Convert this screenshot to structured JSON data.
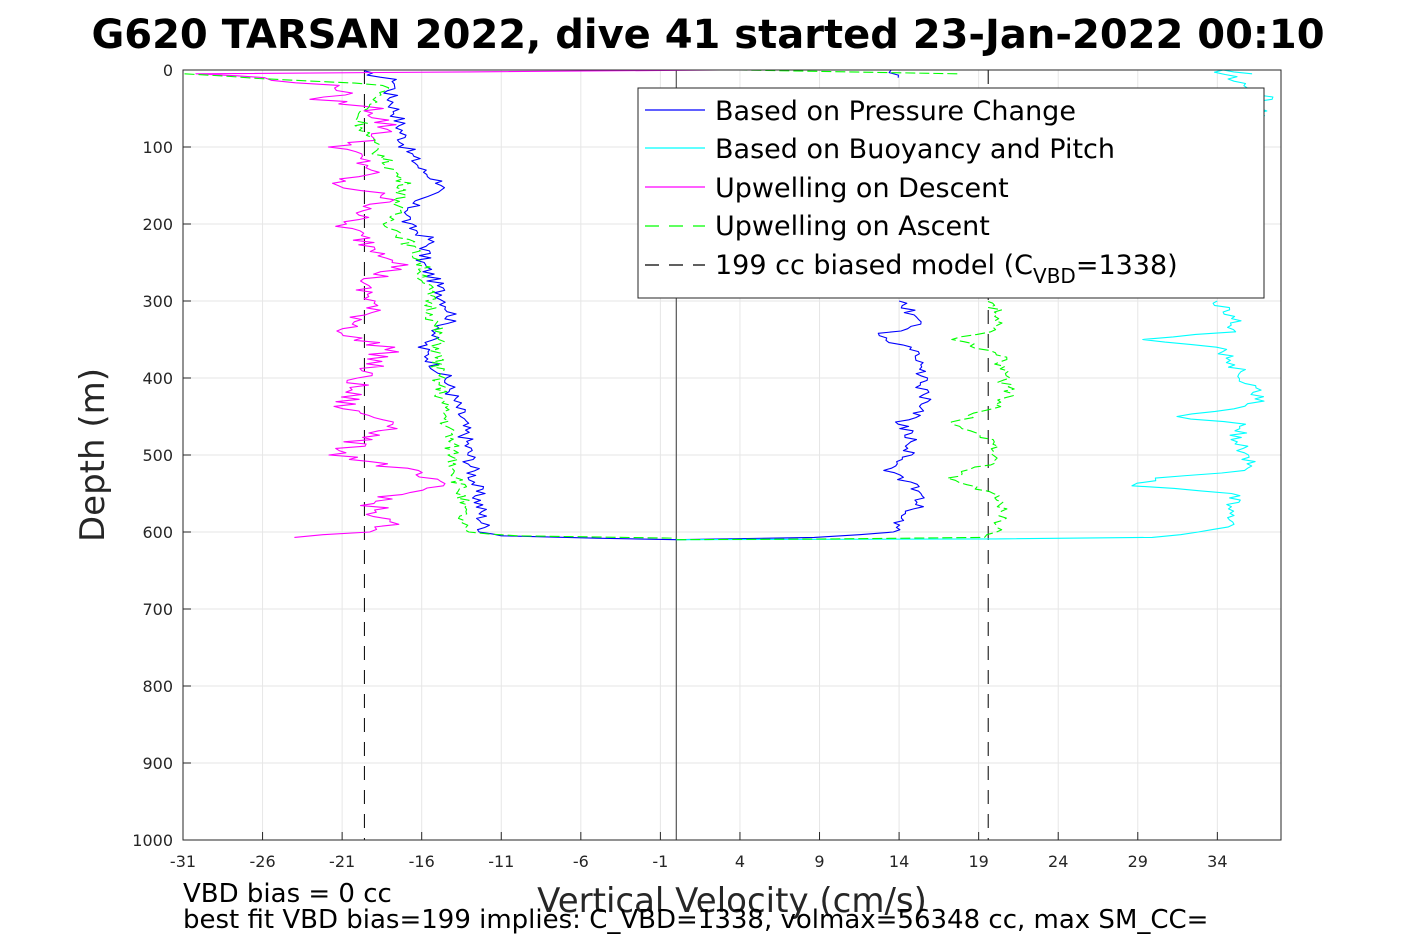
{
  "chart_data": {
    "type": "line",
    "title": "G620 TARSAN 2022, dive 41 started 23-Jan-2022 00:10",
    "xlabel": "Vertical Velocity (cm/s)",
    "ylabel": "Depth (m)",
    "xlim": [
      -31,
      38
    ],
    "ylim": [
      0,
      1000
    ],
    "y_reversed": true,
    "grid": true,
    "legend_placement": "top-right",
    "x_ticks": [
      "-31",
      "-26",
      "-21",
      "-16",
      "-11",
      "-6",
      "-1",
      "4",
      "9",
      "14",
      "19",
      "24",
      "29",
      "34"
    ],
    "y_ticks": [
      "0",
      "100",
      "200",
      "300",
      "400",
      "500",
      "600",
      "700",
      "800",
      "900",
      "1000"
    ],
    "zero_line_x": 0,
    "series": [
      {
        "name": "Based on Pressure Change",
        "color": "#0000ff",
        "style": "solid",
        "descent": [
          [
            -20,
            1
          ],
          [
            -17.5,
            15
          ],
          [
            -18,
            30
          ],
          [
            -17.5,
            60
          ],
          [
            -17,
            100
          ],
          [
            -16,
            130
          ],
          [
            -14.5,
            150
          ],
          [
            -16.5,
            170
          ],
          [
            -17,
            200
          ],
          [
            -15.5,
            220
          ],
          [
            -16,
            250
          ],
          [
            -15,
            280
          ],
          [
            -14,
            320
          ],
          [
            -16,
            360
          ],
          [
            -14.5,
            400
          ],
          [
            -13.5,
            450
          ],
          [
            -13,
            500
          ],
          [
            -12.5,
            550
          ],
          [
            -12,
            600
          ],
          [
            -11,
            605
          ],
          [
            -5,
            608
          ],
          [
            0,
            610
          ]
        ],
        "ascent": [
          [
            0,
            610
          ],
          [
            9,
            607
          ],
          [
            13.5,
            600
          ],
          [
            15,
            570
          ],
          [
            15.5,
            550
          ],
          [
            13.5,
            520
          ],
          [
            14.5,
            500
          ],
          [
            15,
            480
          ],
          [
            14,
            460
          ],
          [
            15.5,
            440
          ],
          [
            15.5,
            400
          ],
          [
            15.5,
            380
          ],
          [
            14.5,
            360
          ],
          [
            12.5,
            345
          ],
          [
            15.5,
            330
          ],
          [
            14,
            300
          ]
        ],
        "surface": [
          [
            14,
            10
          ],
          [
            13.5,
            0
          ]
        ]
      },
      {
        "name": "Based on Buoyancy and Pitch",
        "color": "#00ffff",
        "style": "solid",
        "ascent": [
          [
            0,
            610
          ],
          [
            20,
            609
          ],
          [
            30,
            607
          ],
          [
            33,
            600
          ],
          [
            35,
            590
          ],
          [
            35,
            570
          ],
          [
            35,
            550
          ],
          [
            29,
            540
          ],
          [
            30,
            530
          ],
          [
            36,
            520
          ],
          [
            36,
            500
          ],
          [
            35,
            480
          ],
          [
            36,
            460
          ],
          [
            31,
            450
          ],
          [
            35,
            440
          ],
          [
            37,
            430
          ],
          [
            36,
            410
          ],
          [
            35,
            380
          ],
          [
            34,
            360
          ],
          [
            29,
            350
          ],
          [
            35,
            340
          ],
          [
            35,
            320
          ],
          [
            34,
            300
          ]
        ],
        "surface": [
          [
            36,
            5
          ],
          [
            34,
            0
          ],
          [
            37,
            35
          ],
          [
            36,
            105
          ]
        ]
      },
      {
        "name": "Upwelling on Descent",
        "color": "#ff00ff",
        "style": "solid",
        "descent": [
          [
            3,
            0
          ],
          [
            -30,
            5
          ],
          [
            -26,
            10
          ],
          [
            -22,
            20
          ],
          [
            -20,
            30
          ],
          [
            -23,
            35
          ],
          [
            -19,
            50
          ],
          [
            -18,
            80
          ],
          [
            -21,
            100
          ],
          [
            -19,
            130
          ],
          [
            -22,
            150
          ],
          [
            -18,
            160
          ],
          [
            -19,
            180
          ],
          [
            -21,
            200
          ],
          [
            -19,
            230
          ],
          [
            -17,
            250
          ],
          [
            -20,
            280
          ],
          [
            -19,
            300
          ],
          [
            -20,
            330
          ],
          [
            -21,
            345
          ],
          [
            -18,
            360
          ],
          [
            -20,
            400
          ],
          [
            -21,
            440
          ],
          [
            -17,
            460
          ],
          [
            -20,
            480
          ],
          [
            -21,
            500
          ],
          [
            -17,
            520
          ],
          [
            -15,
            540
          ],
          [
            -19,
            560
          ],
          [
            -19,
            580
          ],
          [
            -18,
            590
          ],
          [
            -20,
            600
          ],
          [
            -24,
            607
          ]
        ]
      },
      {
        "name": "Upwelling on Ascent",
        "color": "#00ff00",
        "style": "dashed",
        "descent": [
          [
            -31,
            5
          ],
          [
            -18,
            20
          ],
          [
            -20,
            60
          ],
          [
            -19,
            100
          ],
          [
            -17,
            150
          ],
          [
            -18,
            200
          ],
          [
            -17,
            220
          ],
          [
            -16,
            250
          ],
          [
            -15.5,
            300
          ],
          [
            -15,
            350
          ],
          [
            -15,
            400
          ],
          [
            -14.5,
            450
          ],
          [
            -14,
            500
          ],
          [
            -13.5,
            550
          ],
          [
            -13.5,
            600
          ],
          [
            -10,
            605
          ],
          [
            0,
            608
          ]
        ],
        "ascent": [
          [
            0,
            610
          ],
          [
            10,
            609
          ],
          [
            19,
            607
          ],
          [
            20,
            600
          ],
          [
            20.5,
            570
          ],
          [
            20,
            550
          ],
          [
            17,
            530
          ],
          [
            20,
            510
          ],
          [
            20,
            480
          ],
          [
            17,
            460
          ],
          [
            20,
            440
          ],
          [
            21,
            420
          ],
          [
            20.5,
            400
          ],
          [
            20.5,
            370
          ],
          [
            17.5,
            350
          ],
          [
            20,
            340
          ],
          [
            20.5,
            320
          ],
          [
            19.5,
            300
          ]
        ],
        "surface": [
          [
            18,
            5
          ],
          [
            4,
            0
          ]
        ]
      },
      {
        "name_text": "199 cc biased model (C",
        "name_sub": "VBD",
        "name_suffix": "=1338)",
        "color": "#000000",
        "style": "dashed",
        "vertical_lines_x": [
          -19.6,
          19.6
        ],
        "depth_range": [
          0,
          1000
        ]
      }
    ],
    "annotations": [
      "VBD bias = 0 cc",
      "best fit VBD bias=199 implies: C_VBD=1338, volmax=56348 cc, max SM_CC="
    ]
  }
}
